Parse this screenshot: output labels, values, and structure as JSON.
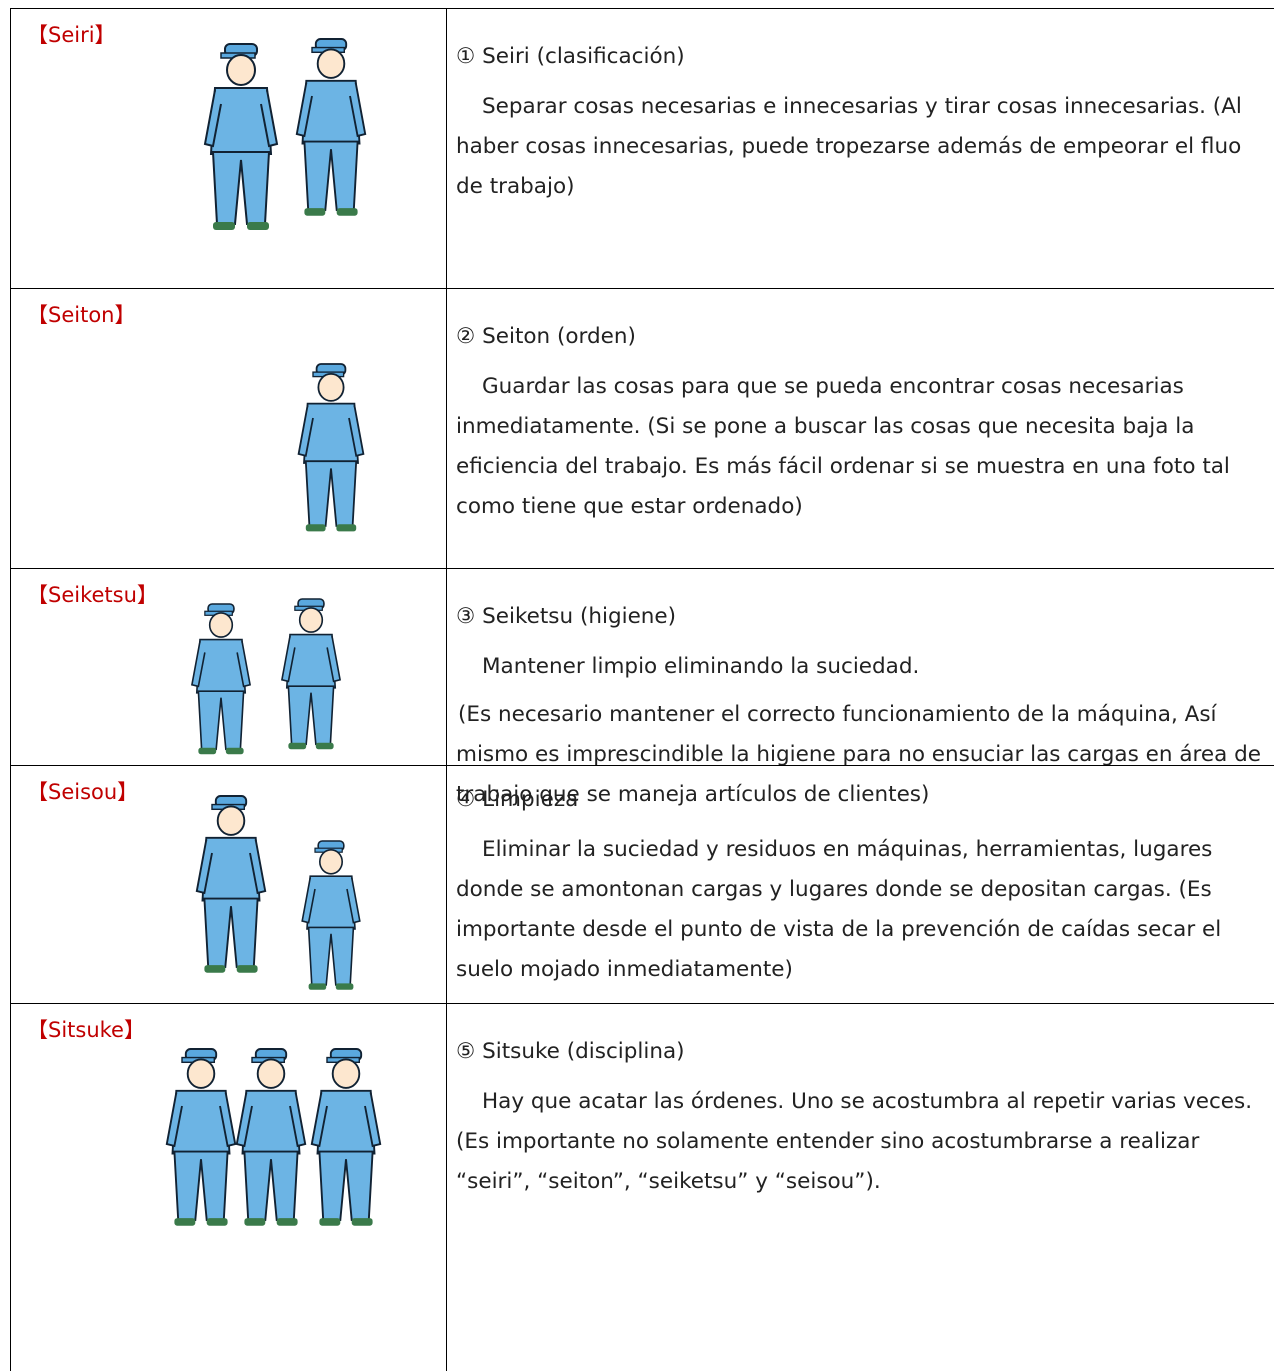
{
  "rows": [
    {
      "label": "【Seiri】",
      "title": "① Seiri (clasificación)",
      "paragraphs": [
        "Separar cosas necesarias e innecesarias y tirar cosas innecesarias. (Al haber cosas innecesarias, puede tropezarse además de empeorar el fluo de trabajo)"
      ]
    },
    {
      "label": "【Seiton】",
      "title": "② Seiton (orden)",
      "paragraphs": [
        "Guardar las cosas para que se pueda encontrar cosas necesarias inmediatamente. (Si se pone a buscar las cosas que necesita baja la eficiencia del trabajo. Es más fácil ordenar si se muestra en una foto tal como tiene que estar ordenado)"
      ]
    },
    {
      "label": "【Seiketsu】",
      "title": "③ Seiketsu (higiene)",
      "paragraphs": [
        "Mantener limpio eliminando la suciedad.",
        "(Es necesario mantener el correcto funcionamiento de la máquina, Así mismo es imprescindible la higiene para no ensuciar las cargas en área de trabajo que se maneja artículos de clientes)"
      ]
    },
    {
      "label": "【Seisou】",
      "title": "④ Limpieza",
      "paragraphs": [
        "Eliminar la suciedad y residuos en máquinas, herramientas, lugares donde se amontonan cargas y lugares donde se depositan cargas. (Es importante desde el punto de vista de la prevención de caídas secar el suelo mojado inmediatamente)"
      ]
    },
    {
      "label": "【Sitsuke】",
      "title": "⑤ Sitsuke (disciplina)",
      "paragraphs": [
        "Hay que acatar las órdenes. Uno se acostumbra al repetir varias veces. (Es importante no solamente entender sino acostumbrarse a realizar “seiri”, “seiton”, “seiketsu” y “seisou”)."
      ]
    }
  ]
}
